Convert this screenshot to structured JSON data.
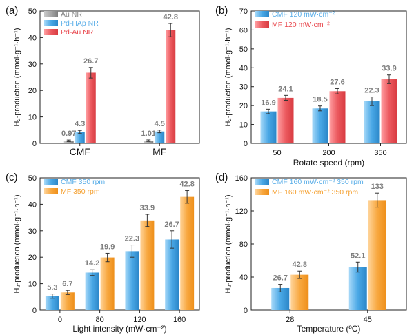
{
  "chart_data": [
    {
      "type": "bar",
      "panel_label": "(a)",
      "categories": [
        "CMF",
        "MF"
      ],
      "series": [
        {
          "name": "Au NR",
          "values": [
            0.97,
            1.01
          ],
          "errors": [
            0.3,
            0.3
          ],
          "labels": [
            "0.97",
            "1.01"
          ]
        },
        {
          "name": "Pd-HAp NR",
          "values": [
            4.3,
            4.5
          ],
          "errors": [
            0.6,
            0.5
          ],
          "labels": [
            "4.3",
            "4.5"
          ]
        },
        {
          "name": "Pd-Au NR",
          "values": [
            26.7,
            42.8
          ],
          "errors": [
            2.0,
            2.5
          ],
          "labels": [
            "26.7",
            "42.8"
          ]
        }
      ],
      "xlabel": "",
      "ylabel": "H₂-production (mmol·g⁻¹·h⁻¹)",
      "ylim": [
        0,
        50
      ],
      "yticks": [
        0,
        10,
        20,
        30,
        40,
        50
      ],
      "legend": "top-left",
      "grid": false
    },
    {
      "type": "bar",
      "panel_label": "(b)",
      "categories": [
        "50",
        "200",
        "350"
      ],
      "series": [
        {
          "name": "CMF 120 mW·cm⁻²",
          "values": [
            16.9,
            18.5,
            22.3
          ],
          "errors": [
            1.2,
            1.3,
            2.3
          ],
          "labels": [
            "16.9",
            "18.5",
            "22.3"
          ]
        },
        {
          "name": "MF  120 mW·cm⁻²",
          "values": [
            24.1,
            27.6,
            33.9
          ],
          "errors": [
            1.3,
            1.4,
            2.3
          ],
          "labels": [
            "24.1",
            "27.6",
            "33.9"
          ]
        }
      ],
      "xlabel": "Rotate speed (rpm)",
      "ylabel": "H₂-production (mmol·g⁻¹·h⁻¹)",
      "ylim": [
        0,
        70
      ],
      "yticks": [
        0,
        10,
        20,
        30,
        40,
        50,
        60,
        70
      ],
      "legend": "top-left",
      "grid": false
    },
    {
      "type": "bar",
      "panel_label": "(c)",
      "categories": [
        "0",
        "80",
        "120",
        "160"
      ],
      "series": [
        {
          "name": "CMF 350 rpm",
          "values": [
            5.3,
            14.2,
            22.3,
            26.7
          ],
          "errors": [
            0.8,
            1.1,
            2.3,
            3.3
          ],
          "labels": [
            "5.3",
            "14.2",
            "22.3",
            "26.7"
          ]
        },
        {
          "name": "MF  350 rpm",
          "values": [
            6.7,
            19.9,
            33.9,
            42.8
          ],
          "errors": [
            0.8,
            1.6,
            2.3,
            2.4
          ],
          "labels": [
            "6.7",
            "19.9",
            "33.9",
            "42.8"
          ]
        }
      ],
      "xlabel": "Light intensity (mW·cm⁻²)",
      "ylabel": "H₂-production (mmol·g⁻¹·h⁻¹)",
      "ylim": [
        0,
        50
      ],
      "yticks": [
        0,
        10,
        20,
        30,
        40,
        50
      ],
      "legend": "top-left",
      "grid": false
    },
    {
      "type": "bar",
      "panel_label": "(d)",
      "categories": [
        "28",
        "45"
      ],
      "series": [
        {
          "name": "CMF 160 mW·cm⁻² 350 rpm",
          "values": [
            26.7,
            52.1
          ],
          "errors": [
            4.5,
            6.0
          ],
          "labels": [
            "26.7",
            "52.1"
          ]
        },
        {
          "name": "MF 160 mW·cm⁻² 350 rpm",
          "values": [
            42.8,
            133
          ],
          "errors": [
            4.5,
            8.5
          ],
          "labels": [
            "42.8",
            "133"
          ]
        }
      ],
      "xlabel": "Temperature (ºC)",
      "ylabel": "H₂-production (mmol·g⁻¹·h⁻¹)",
      "ylim": [
        0,
        160
      ],
      "yticks": [
        0,
        40,
        80,
        120,
        160
      ],
      "legend": "top-left",
      "grid": false
    }
  ],
  "colors": {
    "gray": "#9a9a9a",
    "blue": "#4aa8e6",
    "red": "#ec5a5f",
    "orange": "#f8a840",
    "legend_text_blue": "#5aaee8",
    "legend_text_red": "#e8474d",
    "legend_text_orange": "#f5a030",
    "legend_text_gray": "#888888",
    "value_label": "#7d7d7d"
  }
}
